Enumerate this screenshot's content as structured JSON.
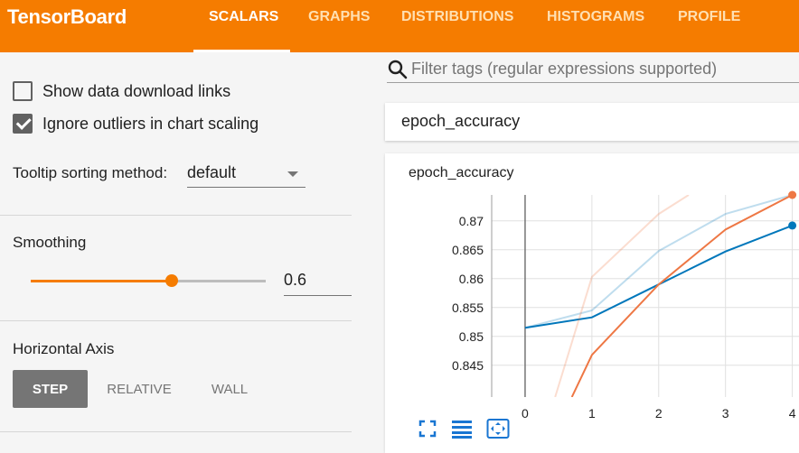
{
  "app": {
    "brand": "TensorBoard"
  },
  "tabs": [
    {
      "label": "SCALARS",
      "active": true
    },
    {
      "label": "GRAPHS",
      "active": false
    },
    {
      "label": "DISTRIBUTIONS",
      "active": false
    },
    {
      "label": "HISTOGRAMS",
      "active": false
    },
    {
      "label": "PROFILE",
      "active": false
    }
  ],
  "sidebar": {
    "show_download_links": {
      "label": "Show data download links",
      "checked": false
    },
    "ignore_outliers": {
      "label": "Ignore outliers in chart scaling",
      "checked": true
    },
    "tooltip_sorting": {
      "label": "Tooltip sorting method:",
      "value": "default"
    },
    "smoothing": {
      "label": "Smoothing",
      "value": "0.6",
      "level": 0.6
    },
    "horizontal_axis": {
      "label": "Horizontal Axis",
      "options": [
        "STEP",
        "RELATIVE",
        "WALL"
      ],
      "selected": "STEP"
    }
  },
  "search": {
    "placeholder": "Filter tags (regular expressions supported)"
  },
  "card": {
    "header": "epoch_accuracy"
  },
  "colors": {
    "accent": "#f57c00",
    "series_blue": "#0077bb",
    "series_orange": "#ee7744"
  },
  "icons": [
    "search-icon",
    "fit-domain-icon",
    "toggle-log-icon",
    "expand-icon"
  ],
  "chart_data": {
    "type": "line",
    "title": "epoch_accuracy",
    "x_ticks": [
      "0",
      "1",
      "2",
      "3",
      "4"
    ],
    "y_ticks": [
      "0.845",
      "0.85",
      "0.855",
      "0.86",
      "0.865",
      "0.87"
    ],
    "ylim": [
      0.8395,
      0.8745
    ],
    "xlim": [
      -0.5,
      4.1
    ],
    "grid": true,
    "series": [
      {
        "color": "#0077bb",
        "smoothed": true,
        "x": [
          0,
          1,
          2,
          3,
          4
        ],
        "y": [
          0.8515,
          0.8533,
          0.859,
          0.8647,
          0.8692
        ]
      },
      {
        "color": "#0077bb",
        "smoothed": false,
        "faded": true,
        "x": [
          0,
          1,
          2,
          3,
          4
        ],
        "y": [
          0.8515,
          0.8545,
          0.8648,
          0.8712,
          0.8745
        ]
      },
      {
        "color": "#ee7744",
        "smoothed": true,
        "x": [
          0.7,
          1,
          2,
          3,
          4
        ],
        "y": [
          0.8395,
          0.8468,
          0.859,
          0.8685,
          0.8745
        ]
      },
      {
        "color": "#ee7744",
        "smoothed": false,
        "faded": true,
        "x": [
          0.45,
          1,
          2,
          2.45
        ],
        "y": [
          0.8395,
          0.8603,
          0.8712,
          0.8745
        ]
      }
    ]
  }
}
